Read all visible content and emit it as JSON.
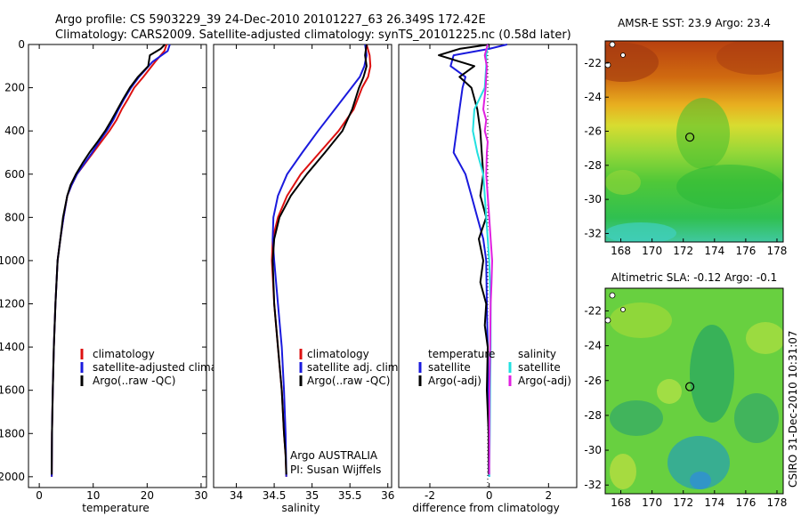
{
  "figure": {
    "title_line1": "Argo profile: CS 5903229_39 24-Dec-2010 20101227_63 26.349S 172.42E",
    "title_line2": "Climatology: CARS2009. Satellite-adjusted climatology: synTS_20101225.nc (0.58d later)",
    "side_stamp": "CSIRO 31-Dec-2010 10:31:07",
    "footer_line1": "Argo AUSTRALIA",
    "footer_line2": "PI: Susan Wijffels"
  },
  "colors": {
    "climatology": "#dd1111",
    "satellite": "#1a1add",
    "argo": "#000000",
    "satellite_salinity": "#22e0e0",
    "argo_salinity_adj": "#e020e0",
    "map_marker": "#000000"
  },
  "chart_data": [
    {
      "type": "line",
      "name": "temperature-profile",
      "xlabel": "temperature",
      "ylabel": "",
      "xlim": [
        -2,
        31
      ],
      "ylim": [
        2050,
        0
      ],
      "xticks": [
        0,
        10,
        20,
        30
      ],
      "yticks": [
        0,
        200,
        400,
        600,
        800,
        1000,
        1200,
        1400,
        1600,
        1800,
        2000
      ],
      "legend_position": "lower-center",
      "series": [
        {
          "name": "climatology",
          "color_key": "climatology",
          "x": [
            23.6,
            23.2,
            21.5,
            19.3,
            17.6,
            16.5,
            15.3,
            14.3,
            13.0,
            11.5,
            10.0,
            8.5,
            7.0,
            6.0,
            5.2,
            4.5,
            3.9,
            3.4,
            3.0,
            2.7,
            2.5,
            2.35,
            2.3
          ],
          "y": [
            0,
            30,
            80,
            150,
            200,
            250,
            300,
            350,
            400,
            450,
            500,
            550,
            600,
            650,
            700,
            800,
            900,
            1000,
            1200,
            1400,
            1600,
            1800,
            2000
          ]
        },
        {
          "name": "satellite-adjusted climatology",
          "color_key": "satellite",
          "x": [
            24.2,
            23.8,
            21.0,
            18.5,
            17.0,
            15.8,
            14.7,
            13.7,
            12.5,
            11.1,
            9.8,
            8.4,
            7.0,
            6.0,
            5.2,
            4.5,
            3.9,
            3.4,
            3.0,
            2.7,
            2.5,
            2.35,
            2.3
          ],
          "y": [
            0,
            30,
            80,
            150,
            200,
            250,
            300,
            350,
            400,
            450,
            500,
            550,
            600,
            650,
            700,
            800,
            900,
            1000,
            1200,
            1400,
            1600,
            1800,
            2000
          ]
        },
        {
          "name": "Argo(..raw -QC)",
          "color_key": "argo",
          "x": [
            23.3,
            22.5,
            20.5,
            20.2,
            18.3,
            16.8,
            15.6,
            14.5,
            13.4,
            12.2,
            10.8,
            9.3,
            8.0,
            6.8,
            5.8,
            5.2,
            4.4,
            3.9,
            3.4,
            3.0,
            2.7,
            2.5,
            2.35,
            2.3
          ],
          "y": [
            0,
            20,
            50,
            100,
            150,
            200,
            250,
            300,
            350,
            400,
            450,
            500,
            550,
            600,
            650,
            700,
            800,
            900,
            1000,
            1200,
            1400,
            1600,
            1800,
            1990
          ]
        }
      ]
    },
    {
      "type": "line",
      "name": "salinity-profile",
      "xlabel": "salinity",
      "ylabel": "",
      "xlim": [
        33.7,
        36.05
      ],
      "ylim": [
        2050,
        0
      ],
      "xticks": [
        34,
        34.5,
        35,
        35.5,
        36
      ],
      "legend_position": "lower-center",
      "series": [
        {
          "name": "climatology",
          "color_key": "climatology",
          "x": [
            35.72,
            35.76,
            35.77,
            35.74,
            35.66,
            35.55,
            35.35,
            35.1,
            34.85,
            34.67,
            34.55,
            34.48,
            34.47,
            34.5,
            34.55,
            34.6,
            34.63,
            34.65,
            34.66
          ],
          "y": [
            0,
            50,
            100,
            150,
            200,
            300,
            400,
            500,
            600,
            700,
            800,
            900,
            1000,
            1200,
            1400,
            1600,
            1800,
            1900,
            2000
          ]
        },
        {
          "name": "satellite adj. clim.",
          "color_key": "satellite",
          "x": [
            35.7,
            35.72,
            35.69,
            35.63,
            35.52,
            35.3,
            35.08,
            34.87,
            34.67,
            34.55,
            34.49,
            34.48,
            34.5,
            34.55,
            34.6,
            34.63,
            34.65,
            34.66
          ],
          "y": [
            0,
            50,
            100,
            150,
            200,
            300,
            400,
            500,
            600,
            700,
            800,
            900,
            1000,
            1200,
            1400,
            1600,
            1800,
            2000
          ]
        },
        {
          "name": "Argo(..raw -QC)",
          "color_key": "argo",
          "x": [
            35.72,
            35.7,
            35.72,
            35.68,
            35.62,
            35.53,
            35.4,
            35.17,
            34.93,
            34.72,
            34.57,
            34.5,
            34.48,
            34.5,
            34.55,
            34.6,
            34.63,
            34.65,
            34.66
          ],
          "y": [
            0,
            50,
            100,
            150,
            200,
            300,
            400,
            500,
            600,
            700,
            800,
            900,
            1000,
            1200,
            1400,
            1600,
            1800,
            1900,
            1990
          ]
        }
      ]
    },
    {
      "type": "line",
      "name": "difference-profile",
      "xlabel": "difference from climatology",
      "ylabel": "",
      "xlim": [
        -3.05,
        2.95
      ],
      "ylim": [
        2050,
        0
      ],
      "xticks": [
        -2,
        0,
        2
      ],
      "zero_line": true,
      "legend_groups": [
        {
          "heading": "temperature",
          "items": [
            "satellite",
            "Argo(-adj)"
          ]
        },
        {
          "heading": "salinity",
          "items": [
            "satellite",
            "Argo(-adj)"
          ]
        }
      ],
      "series": [
        {
          "name": "temperature satellite",
          "legend_label": "satellite",
          "color_key": "satellite",
          "x": [
            0.6,
            0.0,
            -1.2,
            -1.3,
            -0.8,
            -0.9,
            -1.0,
            -1.1,
            -1.2,
            -0.8,
            -0.6,
            -0.4,
            -0.2,
            -0.1,
            -0.08,
            -0.05,
            -0.03,
            -0.02,
            -0.01,
            0.0
          ],
          "y": [
            0,
            20,
            50,
            100,
            150,
            200,
            300,
            400,
            500,
            600,
            700,
            800,
            900,
            1000,
            1200,
            1400,
            1600,
            1800,
            1900,
            2000
          ]
        },
        {
          "name": "temperature Argo(-adj)",
          "legend_label": "Argo(-adj)",
          "color_key": "argo",
          "x": [
            0.0,
            -1.0,
            -1.7,
            -0.5,
            -1.0,
            -0.6,
            -0.4,
            -0.3,
            -0.25,
            -0.2,
            -0.3,
            -0.1,
            -0.35,
            -0.2,
            -0.3,
            -0.1,
            -0.15,
            -0.05,
            -0.08,
            -0.02,
            -0.02
          ],
          "y": [
            0,
            20,
            50,
            100,
            150,
            200,
            300,
            400,
            500,
            600,
            700,
            800,
            900,
            1000,
            1100,
            1200,
            1300,
            1400,
            1600,
            1800,
            1990
          ]
        },
        {
          "name": "salinity satellite",
          "legend_label": "satellite",
          "color_key": "satellite_salinity",
          "x": [
            -0.05,
            -0.1,
            -0.1,
            -0.15,
            -0.5,
            -0.55,
            -0.4,
            -0.2,
            -0.15,
            -0.1,
            -0.05,
            0.0,
            0.05,
            0.05,
            0.03,
            0.02,
            0.01,
            0.0,
            0.0
          ],
          "y": [
            0,
            50,
            100,
            200,
            300,
            400,
            500,
            600,
            700,
            800,
            900,
            1000,
            1200,
            1400,
            1600,
            1800,
            1900,
            1950,
            2000
          ]
        },
        {
          "name": "salinity Argo(-adj)",
          "legend_label": "Argo(-adj)",
          "color_key": "argo_salinity_adj",
          "x": [
            -0.05,
            -0.15,
            -0.08,
            -0.1,
            -0.12,
            -0.2,
            -0.1,
            -0.15,
            -0.05,
            -0.08,
            -0.1,
            -0.05,
            0.0,
            0.05,
            0.1,
            0.08,
            0.05,
            0.03,
            0.01,
            0.0
          ],
          "y": [
            0,
            50,
            100,
            150,
            200,
            300,
            350,
            400,
            450,
            500,
            600,
            700,
            800,
            900,
            1000,
            1100,
            1200,
            1400,
            1600,
            1990
          ]
        }
      ]
    },
    {
      "type": "heatmap",
      "name": "sst-map",
      "title": "AMSR-E SST: 23.9 Argo: 23.4",
      "xlim": [
        167,
        178.4
      ],
      "ylim": [
        -32.5,
        -20.7
      ],
      "xticks": [
        168,
        170,
        172,
        174,
        176,
        178
      ],
      "yticks": [
        -22,
        -24,
        -26,
        -28,
        -30,
        -32
      ],
      "marker": [
        172.42,
        -26.349
      ]
    },
    {
      "type": "heatmap",
      "name": "sla-map",
      "title": "Altimetric SLA: -0.12 Argo: -0.1",
      "xlim": [
        167,
        178.4
      ],
      "ylim": [
        -32.5,
        -20.7
      ],
      "xticks": [
        168,
        170,
        172,
        174,
        176,
        178
      ],
      "yticks": [
        -22,
        -24,
        -26,
        -28,
        -30,
        -32
      ],
      "marker": [
        172.42,
        -26.349
      ]
    }
  ]
}
